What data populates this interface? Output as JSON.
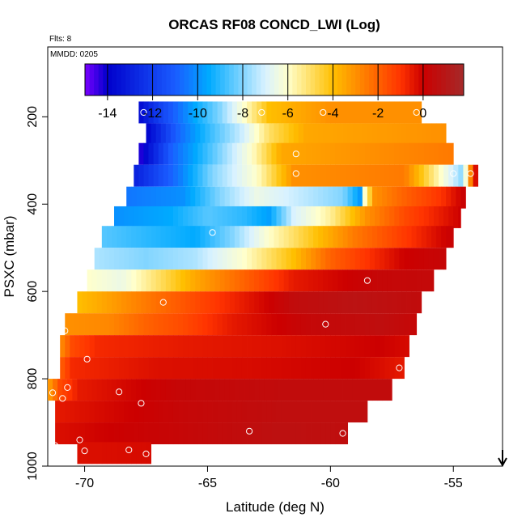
{
  "chart_data": {
    "type": "heatmap",
    "title": "ORCAS RF08 CONCD_LWI (Log)",
    "flts_label": "Flts: 8",
    "mmdd_label": "MMDD: 0205",
    "xlabel": "Latitude (deg N)",
    "ylabel": "PSXC (mbar)",
    "xlim": [
      -71.5,
      -53
    ],
    "ylim": [
      1000,
      40
    ],
    "xticks": [
      -70,
      -65,
      -60,
      -55
    ],
    "xtick_labels": [
      "-70",
      "-65",
      "-60",
      "-55"
    ],
    "yticks": [
      200,
      400,
      600,
      800,
      1000
    ],
    "ytick_labels": [
      "200",
      "400",
      "600",
      "800",
      "1000"
    ],
    "colorbar": {
      "range": [
        -15,
        1.8
      ],
      "ticks": [
        -14,
        -12,
        -10,
        -8,
        -6,
        -4,
        -2,
        0
      ],
      "tick_labels": [
        "-14",
        "-12",
        "-10",
        "-8",
        "-6",
        "-4",
        "-2",
        "0"
      ],
      "colors": [
        "#7a00ff",
        "#0000cc",
        "#1a5cff",
        "#00aaff",
        "#d9f2ff",
        "#ffffcc",
        "#ffbf00",
        "#ff3300",
        "#cc0000",
        "#a52a2a"
      ],
      "color_stops": [
        -15,
        -14,
        -11,
        -9.5,
        -7,
        -6,
        -4,
        -1,
        0,
        1.8
      ]
    },
    "rows": [
      {
        "p": 190,
        "x0": -67.8,
        "x1": -56.3,
        "anchors": [
          [
            -67.8,
            -13.8
          ],
          [
            -67,
            -12
          ],
          [
            -65.5,
            -9.5
          ],
          [
            -64.5,
            -8
          ],
          [
            -63.5,
            -6
          ],
          [
            -62.5,
            -4
          ],
          [
            -60,
            -3
          ],
          [
            -56.3,
            -3
          ]
        ]
      },
      {
        "p": 240,
        "x0": -67.5,
        "x1": -55.3,
        "anchors": [
          [
            -67.5,
            -14
          ],
          [
            -66.3,
            -11
          ],
          [
            -65,
            -9
          ],
          [
            -63.5,
            -7
          ],
          [
            -62.5,
            -5
          ],
          [
            -61,
            -3.5
          ],
          [
            -55.3,
            -3
          ]
        ]
      },
      {
        "p": 285,
        "x0": -67.8,
        "x1": -55.0,
        "anchors": [
          [
            -67.8,
            -14.5
          ],
          [
            -66.5,
            -11
          ],
          [
            -64.8,
            -8.5
          ],
          [
            -63.2,
            -6
          ],
          [
            -62,
            -3.5
          ],
          [
            -55,
            -2.5
          ]
        ]
      },
      {
        "p": 335,
        "x0": -68.0,
        "x1": -54.0,
        "anchors": [
          [
            -68,
            -13
          ],
          [
            -66.2,
            -10.5
          ],
          [
            -64.8,
            -8
          ],
          [
            -63,
            -6
          ],
          [
            -61.5,
            -3
          ],
          [
            -57,
            -2.5
          ],
          [
            -55.5,
            -6
          ],
          [
            -54.6,
            -8
          ],
          [
            -54.2,
            -1
          ],
          [
            -54,
            0.5
          ]
        ]
      },
      {
        "p": 385,
        "x0": -68.3,
        "x1": -54.5,
        "anchors": [
          [
            -68.3,
            -10.5
          ],
          [
            -66,
            -10
          ],
          [
            -64.5,
            -8
          ],
          [
            -63,
            -6.5
          ],
          [
            -59.5,
            -8
          ],
          [
            -58.8,
            -9.8
          ],
          [
            -58.6,
            -6
          ],
          [
            -58.2,
            -3
          ],
          [
            -57,
            -2
          ],
          [
            -55.5,
            -1
          ],
          [
            -54.5,
            0.2
          ]
        ]
      },
      {
        "p": 430,
        "x0": -68.8,
        "x1": -54.7,
        "anchors": [
          [
            -68.8,
            -10
          ],
          [
            -66.5,
            -9.5
          ],
          [
            -65,
            -8.5
          ],
          [
            -63.5,
            -9
          ],
          [
            -62.5,
            -9.7
          ],
          [
            -61.5,
            -7
          ],
          [
            -60,
            -5.5
          ],
          [
            -58.5,
            -3
          ],
          [
            -57,
            -1.5
          ],
          [
            -54.7,
            0
          ]
        ]
      },
      {
        "p": 475,
        "x0": -69.3,
        "x1": -55.0,
        "anchors": [
          [
            -69.3,
            -8.5
          ],
          [
            -67.5,
            -9
          ],
          [
            -65.5,
            -9.5
          ],
          [
            -64,
            -8
          ],
          [
            -62.5,
            -6
          ],
          [
            -61,
            -4.5
          ],
          [
            -59,
            -2.5
          ],
          [
            -55,
            0.2
          ]
        ]
      },
      {
        "p": 525,
        "x0": -69.6,
        "x1": -55.3,
        "anchors": [
          [
            -69.6,
            -7.5
          ],
          [
            -67.5,
            -8
          ],
          [
            -65.5,
            -7.5
          ],
          [
            -63.5,
            -6
          ],
          [
            -61.5,
            -4
          ],
          [
            -60,
            -2
          ],
          [
            -57,
            0
          ],
          [
            -55.3,
            0.3
          ]
        ]
      },
      {
        "p": 575,
        "x0": -69.9,
        "x1": -55.8,
        "anchors": [
          [
            -69.9,
            -6
          ],
          [
            -68.5,
            -6.5
          ],
          [
            -67,
            -5
          ],
          [
            -65.5,
            -3.5
          ],
          [
            -63.5,
            -2
          ],
          [
            -61.5,
            -0.5
          ],
          [
            -58,
            0.3
          ],
          [
            -55.8,
            0.4
          ]
        ]
      },
      {
        "p": 625,
        "x0": -70.3,
        "x1": -56.3,
        "anchors": [
          [
            -70.3,
            -4
          ],
          [
            -69.3,
            -3.5
          ],
          [
            -67.5,
            -2.5
          ],
          [
            -65.5,
            -1.5
          ],
          [
            -63.5,
            -0.5
          ],
          [
            -61.5,
            0.5
          ],
          [
            -59,
            0.8
          ],
          [
            -56.3,
            0.5
          ]
        ]
      },
      {
        "p": 675,
        "x0": -70.8,
        "x1": -56.5,
        "anchors": [
          [
            -70.8,
            -3
          ],
          [
            -69,
            -2.8
          ],
          [
            -67.5,
            -2
          ],
          [
            -66,
            -1.5
          ],
          [
            -64,
            -0.5
          ],
          [
            -61,
            0.3
          ],
          [
            -58,
            0.6
          ],
          [
            -56.5,
            0.3
          ]
        ]
      },
      {
        "p": 725,
        "x0": -71.0,
        "x1": -56.8,
        "anchors": [
          [
            -71,
            -3
          ],
          [
            -70.5,
            -1.5
          ],
          [
            -69.5,
            -0.8
          ],
          [
            -66,
            -0.5
          ],
          [
            -62,
            -0.3
          ],
          [
            -58,
            0
          ],
          [
            -56.8,
            -0.2
          ]
        ]
      },
      {
        "p": 775,
        "x0": -71.0,
        "x1": -57.0,
        "anchors": [
          [
            -71,
            -2
          ],
          [
            -70.5,
            -0.8
          ],
          [
            -67,
            -0.3
          ],
          [
            -63,
            -0.2
          ],
          [
            -59,
            0
          ],
          [
            -57,
            -0.5
          ]
        ]
      },
      {
        "p": 825,
        "x0": -71.5,
        "x1": -57.5,
        "anchors": [
          [
            -71.5,
            -3.5
          ],
          [
            -71,
            -1.5
          ],
          [
            -70.2,
            -0.5
          ],
          [
            -66,
            0.3
          ],
          [
            -62,
            0.5
          ],
          [
            -57.5,
            0.5
          ]
        ]
      },
      {
        "p": 875,
        "x0": -71.2,
        "x1": -58.5,
        "anchors": [
          [
            -71.2,
            -0.5
          ],
          [
            -70,
            -0.3
          ],
          [
            -66,
            0.3
          ],
          [
            -62,
            0.6
          ],
          [
            -58.5,
            0.6
          ]
        ]
      },
      {
        "p": 925,
        "x0": -71.2,
        "x1": -59.3,
        "anchors": [
          [
            -71.2,
            -0.3
          ],
          [
            -69,
            0
          ],
          [
            -66,
            0.3
          ],
          [
            -62,
            0.7
          ],
          [
            -59.3,
            0.6
          ]
        ]
      },
      {
        "p": 970,
        "x0": -70.3,
        "x1": -67.3,
        "anchors": [
          [
            -70.3,
            -0.3
          ],
          [
            -67.3,
            -0.2
          ]
        ]
      }
    ],
    "markers": [
      [
        -67.6,
        190
      ],
      [
        -62.8,
        190
      ],
      [
        -60.3,
        190
      ],
      [
        -56.5,
        190
      ],
      [
        -68.7,
        285
      ],
      [
        -61.4,
        285
      ],
      [
        -61.4,
        330
      ],
      [
        -55.0,
        330
      ],
      [
        -54.3,
        330
      ],
      [
        -64.8,
        465
      ],
      [
        -58.5,
        575
      ],
      [
        -66.8,
        625
      ],
      [
        -60.2,
        675
      ],
      [
        -70.8,
        690
      ],
      [
        -69.9,
        755
      ],
      [
        -57.2,
        775
      ],
      [
        -70.7,
        820
      ],
      [
        -71.3,
        832
      ],
      [
        -68.6,
        830
      ],
      [
        -70.9,
        845
      ],
      [
        -67.7,
        856
      ],
      [
        -63.3,
        920
      ],
      [
        -59.5,
        925
      ],
      [
        -70.2,
        940
      ],
      [
        -71.2,
        953
      ],
      [
        -70.0,
        965
      ],
      [
        -68.2,
        963
      ],
      [
        -67.5,
        972
      ]
    ],
    "arrow_x": -53
  }
}
